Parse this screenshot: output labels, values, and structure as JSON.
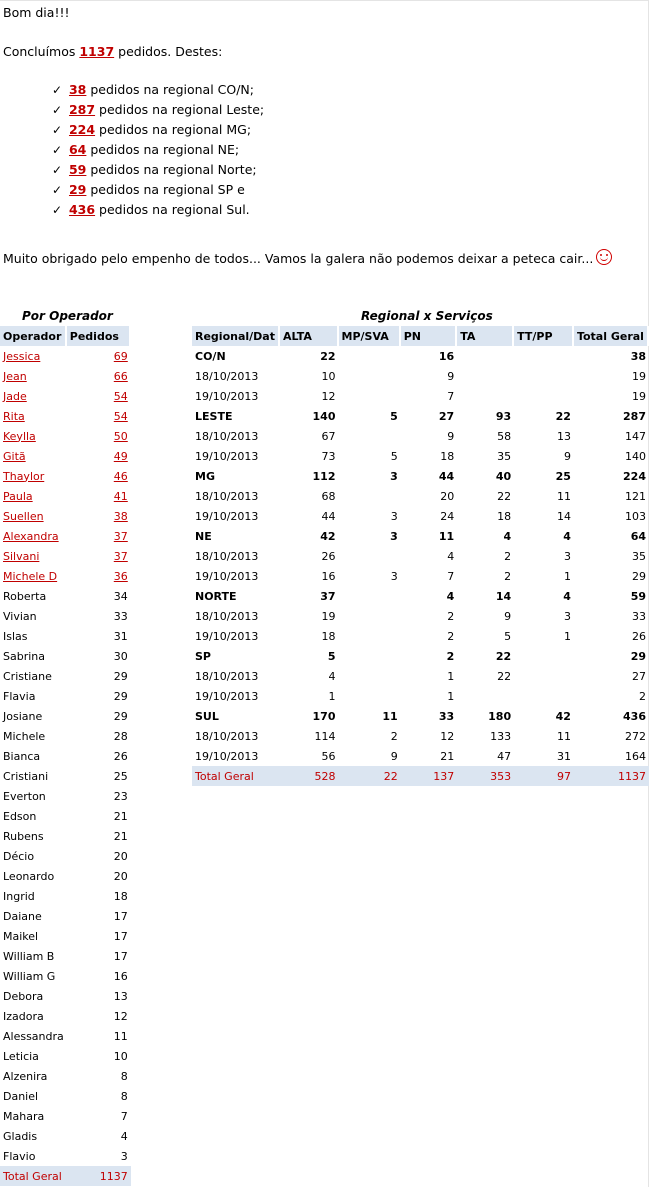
{
  "greeting": "Bom dia!!!",
  "summary": {
    "prefix": "Concluímos ",
    "total": "1137",
    "suffix": " pedidos. Destes:"
  },
  "regionals": [
    {
      "count": "38",
      "text": " pedidos na regional CO/N;"
    },
    {
      "count": "287",
      "text": " pedidos na regional Leste;"
    },
    {
      "count": "224",
      "text": " pedidos na regional MG;"
    },
    {
      "count": "64",
      "text": " pedidos na regional NE;"
    },
    {
      "count": "59",
      "text": " pedidos na regional Norte;"
    },
    {
      "count": "29",
      "text": " pedidos na regional SP e"
    },
    {
      "count": "436",
      "text": " pedidos na regional Sul."
    }
  ],
  "thanks": "Muito obrigado pelo empenho de todos... Vamos la galera não podemos deixar a peteca cair...",
  "operator_table": {
    "title": "Por Operador",
    "headers": [
      "Operador",
      "Pedidos"
    ],
    "rows": [
      {
        "name": "Jessica",
        "value": "69",
        "link": true
      },
      {
        "name": "Jean",
        "value": "66",
        "link": true
      },
      {
        "name": "Jade",
        "value": "54",
        "link": true
      },
      {
        "name": "Rita",
        "value": "54",
        "link": true
      },
      {
        "name": "Keylla",
        "value": "50",
        "link": true
      },
      {
        "name": "Gitã",
        "value": "49",
        "link": true
      },
      {
        "name": "Thaylor",
        "value": "46",
        "link": true
      },
      {
        "name": "Paula",
        "value": "41",
        "link": true
      },
      {
        "name": "Suellen",
        "value": "38",
        "link": true
      },
      {
        "name": "Alexandra",
        "value": "37",
        "link": true
      },
      {
        "name": "Silvani",
        "value": "37",
        "link": true
      },
      {
        "name": "Michele D",
        "value": "36",
        "link": true
      },
      {
        "name": "Roberta",
        "value": "34",
        "link": false
      },
      {
        "name": "Vivian",
        "value": "33",
        "link": false
      },
      {
        "name": "Islas",
        "value": "31",
        "link": false
      },
      {
        "name": "Sabrina",
        "value": "30",
        "link": false
      },
      {
        "name": "Cristiane",
        "value": "29",
        "link": false
      },
      {
        "name": "Flavia",
        "value": "29",
        "link": false
      },
      {
        "name": "Josiane",
        "value": "29",
        "link": false
      },
      {
        "name": "Michele",
        "value": "28",
        "link": false
      },
      {
        "name": "Bianca",
        "value": "26",
        "link": false
      },
      {
        "name": "Cristiani",
        "value": "25",
        "link": false
      },
      {
        "name": "Everton",
        "value": "23",
        "link": false
      },
      {
        "name": "Edson",
        "value": "21",
        "link": false
      },
      {
        "name": "Rubens",
        "value": "21",
        "link": false
      },
      {
        "name": "Décio",
        "value": "20",
        "link": false
      },
      {
        "name": "Leonardo",
        "value": "20",
        "link": false
      },
      {
        "name": "Ingrid",
        "value": "18",
        "link": false
      },
      {
        "name": "Daiane",
        "value": "17",
        "link": false
      },
      {
        "name": "Maikel",
        "value": "17",
        "link": false
      },
      {
        "name": "William B",
        "value": "17",
        "link": false
      },
      {
        "name": "William G",
        "value": "16",
        "link": false
      },
      {
        "name": "Debora",
        "value": "13",
        "link": false
      },
      {
        "name": "Izadora",
        "value": "12",
        "link": false
      },
      {
        "name": "Alessandra",
        "value": "11",
        "link": false
      },
      {
        "name": "Leticia",
        "value": "10",
        "link": false
      },
      {
        "name": "Alzenira",
        "value": "8",
        "link": false
      },
      {
        "name": "Daniel",
        "value": "8",
        "link": false
      },
      {
        "name": "Mahara",
        "value": "7",
        "link": false
      },
      {
        "name": "Gladis",
        "value": "4",
        "link": false
      },
      {
        "name": "Flavio",
        "value": "3",
        "link": false
      }
    ],
    "total_label": "Total Geral",
    "total_value": "1137"
  },
  "regional_table": {
    "title": "Regional x Serviços",
    "headers": [
      "Regional/Dat",
      "ALTA",
      "MP/SVA",
      "PN",
      "TA",
      "TT/PP",
      "Total Geral"
    ],
    "rows": [
      {
        "bold": true,
        "cells": [
          "CO/N",
          "22",
          "",
          "16",
          "",
          "",
          "38"
        ]
      },
      {
        "bold": false,
        "cells": [
          "18/10/2013",
          "10",
          "",
          "9",
          "",
          "",
          "19"
        ]
      },
      {
        "bold": false,
        "cells": [
          "19/10/2013",
          "12",
          "",
          "7",
          "",
          "",
          "19"
        ]
      },
      {
        "bold": true,
        "cells": [
          "LESTE",
          "140",
          "5",
          "27",
          "93",
          "22",
          "287"
        ]
      },
      {
        "bold": false,
        "cells": [
          "18/10/2013",
          "67",
          "",
          "9",
          "58",
          "13",
          "147"
        ]
      },
      {
        "bold": false,
        "cells": [
          "19/10/2013",
          "73",
          "5",
          "18",
          "35",
          "9",
          "140"
        ]
      },
      {
        "bold": true,
        "cells": [
          "MG",
          "112",
          "3",
          "44",
          "40",
          "25",
          "224"
        ]
      },
      {
        "bold": false,
        "cells": [
          "18/10/2013",
          "68",
          "",
          "20",
          "22",
          "11",
          "121"
        ]
      },
      {
        "bold": false,
        "cells": [
          "19/10/2013",
          "44",
          "3",
          "24",
          "18",
          "14",
          "103"
        ]
      },
      {
        "bold": true,
        "cells": [
          "NE",
          "42",
          "3",
          "11",
          "4",
          "4",
          "64"
        ]
      },
      {
        "bold": false,
        "cells": [
          "18/10/2013",
          "26",
          "",
          "4",
          "2",
          "3",
          "35"
        ]
      },
      {
        "bold": false,
        "cells": [
          "19/10/2013",
          "16",
          "3",
          "7",
          "2",
          "1",
          "29"
        ]
      },
      {
        "bold": true,
        "cells": [
          "NORTE",
          "37",
          "",
          "4",
          "14",
          "4",
          "59"
        ]
      },
      {
        "bold": false,
        "cells": [
          "18/10/2013",
          "19",
          "",
          "2",
          "9",
          "3",
          "33"
        ]
      },
      {
        "bold": false,
        "cells": [
          "19/10/2013",
          "18",
          "",
          "2",
          "5",
          "1",
          "26"
        ]
      },
      {
        "bold": true,
        "cells": [
          "SP",
          "5",
          "",
          "2",
          "22",
          "",
          "29"
        ]
      },
      {
        "bold": false,
        "cells": [
          "18/10/2013",
          "4",
          "",
          "1",
          "22",
          "",
          "27"
        ]
      },
      {
        "bold": false,
        "cells": [
          "19/10/2013",
          "1",
          "",
          "1",
          "",
          "",
          "2"
        ]
      },
      {
        "bold": true,
        "cells": [
          "SUL",
          "170",
          "11",
          "33",
          "180",
          "42",
          "436"
        ]
      },
      {
        "bold": false,
        "cells": [
          "18/10/2013",
          "114",
          "2",
          "12",
          "133",
          "11",
          "272"
        ]
      },
      {
        "bold": false,
        "cells": [
          "19/10/2013",
          "56",
          "9",
          "21",
          "47",
          "31",
          "164"
        ]
      }
    ],
    "total": [
      "Total Geral",
      "528",
      "22",
      "137",
      "353",
      "97",
      "1137"
    ]
  },
  "colors": {
    "accent_red": "#c00000",
    "header_fill": "#dbe5f1"
  }
}
